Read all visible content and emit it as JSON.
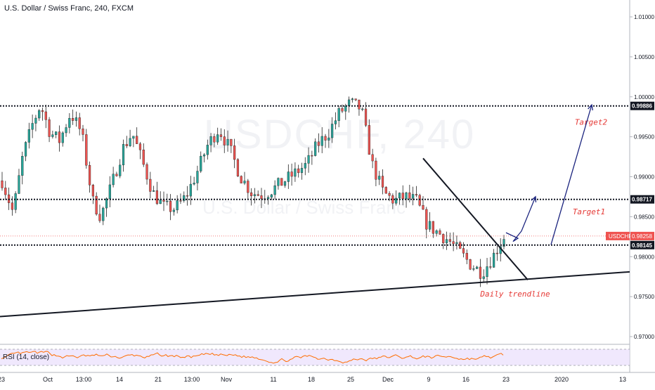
{
  "header": {
    "title": "U.S. Dollar / Swiss Franc, 240, FXCM"
  },
  "watermark": {
    "symbol": "USDCHF, 240",
    "description": "U.S. Dollar / Swiss Franc"
  },
  "colors": {
    "bull": "#26a69a",
    "bear": "#ef5350",
    "level_line": "#131722",
    "price_tag": "#ef5350",
    "annotation_text": "#e53935",
    "arrow": "#1a237e",
    "rsi_line": "#ff6d00",
    "rsi_band": "#e9defc"
  },
  "chart_data": {
    "type": "candlestick",
    "symbol": "USDCHF",
    "timeframe": "240",
    "ylim": [
      0.9675,
      1.0125
    ],
    "y_ticks": [
      "1.01000",
      "1.00500",
      "1.00000",
      "0.99500",
      "0.99000",
      "0.98500",
      "0.98000",
      "0.97500",
      "0.97000"
    ],
    "x_ticks": [
      "23",
      "Oct",
      "13:00",
      "14",
      "21",
      "13:00",
      "Nov",
      "11",
      "18",
      "25",
      "Dec",
      "9",
      "16",
      "23",
      "2020",
      "13"
    ],
    "horizontal_levels": [
      {
        "label": "0.99886",
        "value": 0.99886
      },
      {
        "label": "0.98717",
        "value": 0.98717
      },
      {
        "label": "0.98145",
        "value": 0.98145
      }
    ],
    "last_price": {
      "label": "USDCHF",
      "value_label": "0.98258",
      "value": 0.98258
    },
    "annotations": [
      {
        "text": "Target2",
        "value": 0.9965
      },
      {
        "text": "Target1",
        "value": 0.9853
      },
      {
        "text": "Daily trendline",
        "value": 0.975
      }
    ],
    "trendlines": [
      {
        "name": "daily",
        "from": 0.9725,
        "to": 0.9781
      },
      {
        "name": "descending",
        "from": 0.9923,
        "to": 0.9771
      }
    ],
    "projection_arrows": [
      {
        "from": 0.9832,
        "to": 0.9875
      },
      {
        "from": 0.9815,
        "to": 0.999
      }
    ],
    "rsi": {
      "label": "RSI (14, close)",
      "upper": 70,
      "lower": 30
    },
    "candle_count": 150
  }
}
